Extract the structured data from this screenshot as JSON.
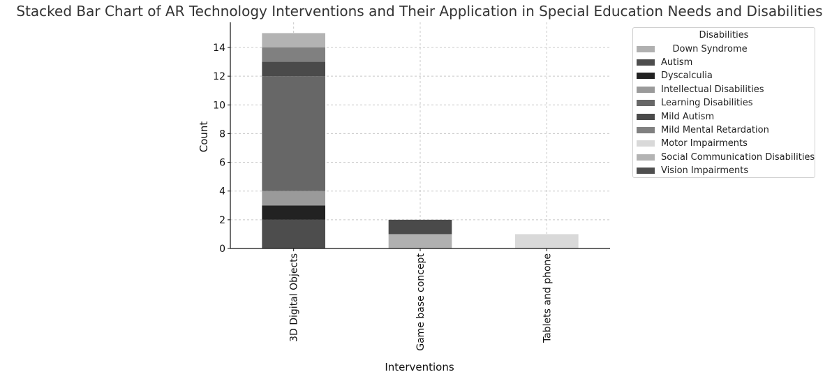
{
  "chart_data": {
    "type": "bar",
    "stacked": true,
    "title": "Stacked Bar Chart of AR Technology Interventions and Their Application in Special Education Needs and Disabilities",
    "xlabel": "Interventions",
    "ylabel": "Count",
    "categories": [
      "3D Digital Objects",
      "Game base concept",
      "Tablets and phone"
    ],
    "ylim": [
      0,
      15.75
    ],
    "yticks": [
      0,
      2,
      4,
      6,
      8,
      10,
      12,
      14
    ],
    "grid": true,
    "legend": {
      "title": "Disabilities",
      "placement": "outside-upper-right"
    },
    "series": [
      {
        "name": "    Down Syndrome",
        "color": "#b0b0b0",
        "values": [
          0,
          1,
          0
        ]
      },
      {
        "name": "Autism",
        "color": "#4d4d4d",
        "values": [
          2,
          0,
          0
        ]
      },
      {
        "name": "Dyscalculia",
        "color": "#222222",
        "values": [
          1,
          0,
          0
        ]
      },
      {
        "name": "Intellectual Disabilities",
        "color": "#9a9a9a",
        "values": [
          1,
          0,
          0
        ]
      },
      {
        "name": "Learning Disabilities",
        "color": "#676767",
        "values": [
          8,
          0,
          0
        ]
      },
      {
        "name": "Mild Autism",
        "color": "#4a4a4a",
        "values": [
          1,
          1,
          0
        ]
      },
      {
        "name": "Mild Mental Retardation",
        "color": "#808080",
        "values": [
          1,
          0,
          0
        ]
      },
      {
        "name": "Motor Impairments",
        "color": "#d9d9d9",
        "values": [
          0,
          0,
          1
        ]
      },
      {
        "name": "Social Communication Disabilities",
        "color": "#b3b3b3",
        "values": [
          1,
          0,
          0
        ]
      },
      {
        "name": "Vision Impairments",
        "color": "#4f4f4f",
        "values": [
          0,
          0,
          0
        ]
      }
    ]
  }
}
